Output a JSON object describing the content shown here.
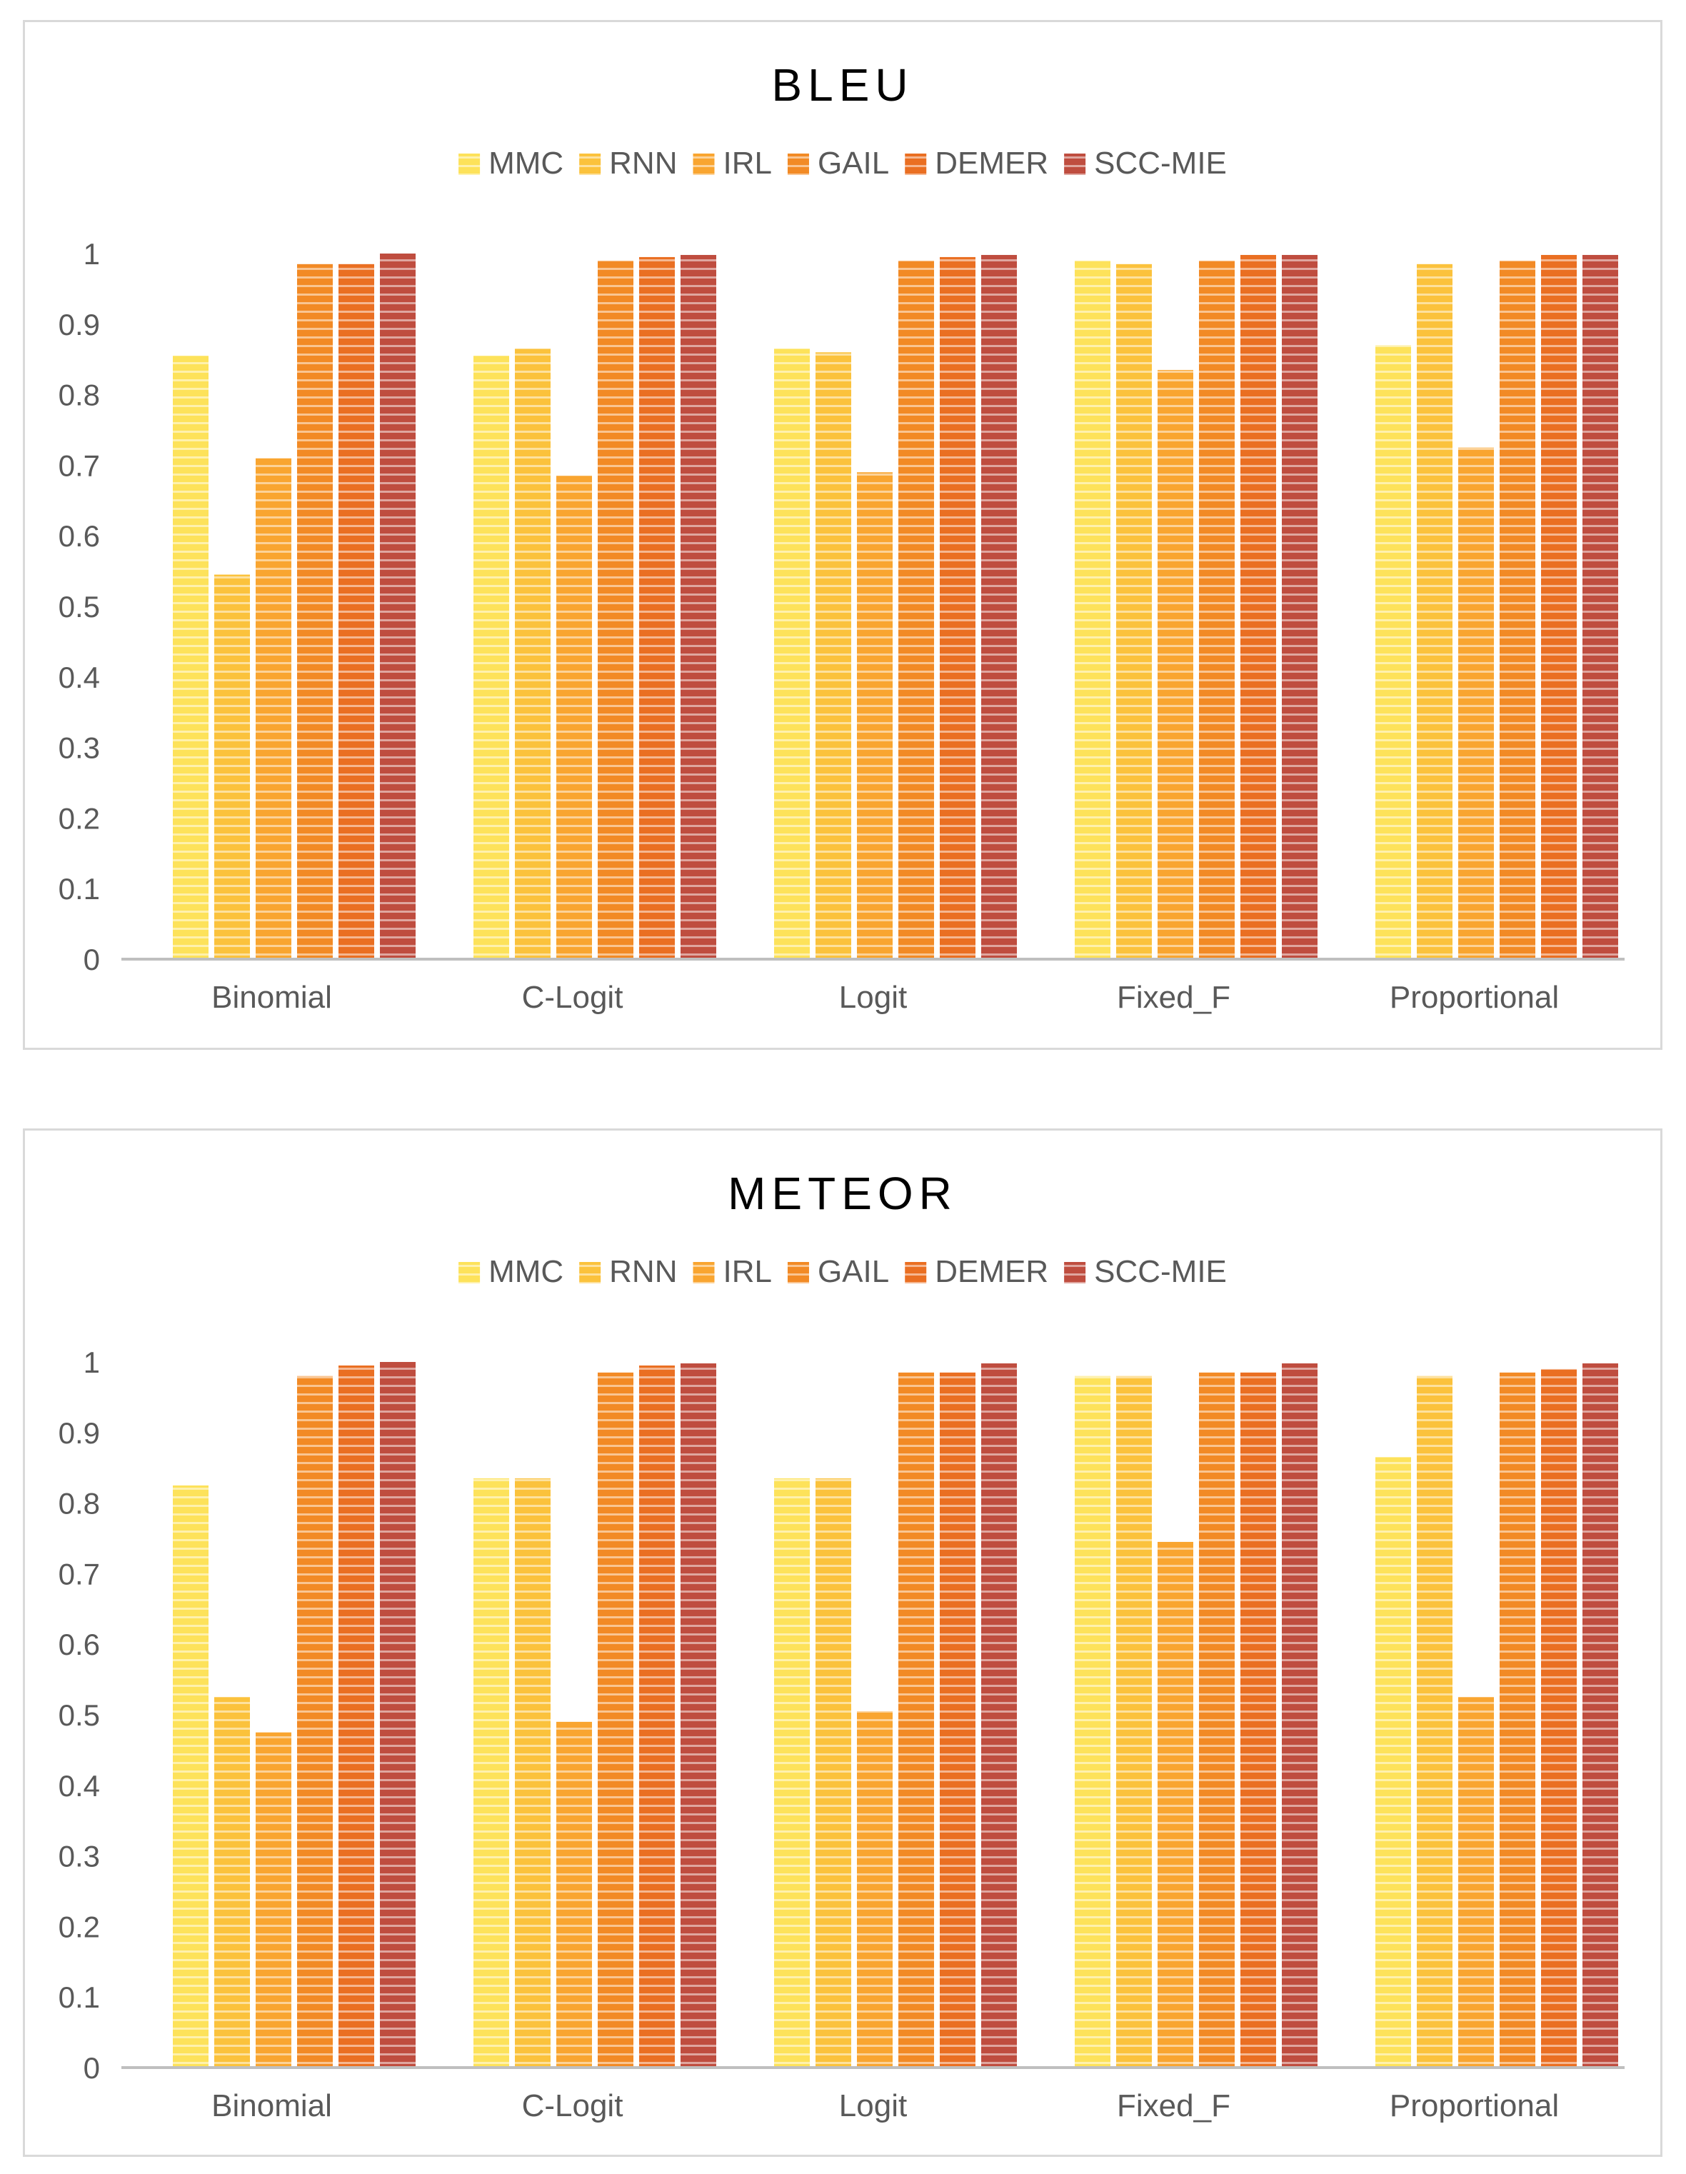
{
  "palette": {
    "MMC": "#fde25a",
    "RNN": "#fbc23c",
    "IRL": "#f9a530",
    "GAIL": "#f28a25",
    "DEMER": "#ea6f22",
    "SCC-MIE": "#bf4d3f",
    "axis": "#bfbfbf",
    "text": "#595959",
    "title": "#000000"
  },
  "chart_data": [
    {
      "type": "bar",
      "title": "BLEU",
      "categories": [
        "Binomial",
        "C-Logit",
        "Logit",
        "Fixed_F",
        "Proportional"
      ],
      "ylim": [
        0,
        1
      ],
      "yticks": [
        "0",
        "0.1",
        "0.2",
        "0.3",
        "0.4",
        "0.5",
        "0.6",
        "0.7",
        "0.8",
        "0.9",
        "1"
      ],
      "legend_position": "top",
      "series": [
        {
          "name": "MMC",
          "values": [
            0.855,
            0.855,
            0.865,
            0.99,
            0.87
          ]
        },
        {
          "name": "RNN",
          "values": [
            0.545,
            0.865,
            0.86,
            0.985,
            0.985
          ]
        },
        {
          "name": "IRL",
          "values": [
            0.71,
            0.685,
            0.69,
            0.835,
            0.725
          ]
        },
        {
          "name": "GAIL",
          "values": [
            0.985,
            0.99,
            0.99,
            0.99,
            0.99
          ]
        },
        {
          "name": "DEMER",
          "values": [
            0.985,
            0.995,
            0.995,
            0.998,
            0.998
          ]
        },
        {
          "name": "SCC-MIE",
          "values": [
            1.0,
            0.998,
            0.998,
            0.998,
            0.998
          ]
        }
      ]
    },
    {
      "type": "bar",
      "title": "METEOR",
      "categories": [
        "Binomial",
        "C-Logit",
        "Logit",
        "Fixed_F",
        "Proportional"
      ],
      "ylim": [
        0,
        1
      ],
      "yticks": [
        "0",
        "0.1",
        "0.2",
        "0.3",
        "0.4",
        "0.5",
        "0.6",
        "0.7",
        "0.8",
        "0.9",
        "1"
      ],
      "legend_position": "top",
      "series": [
        {
          "name": "MMC",
          "values": [
            0.825,
            0.835,
            0.835,
            0.98,
            0.865
          ]
        },
        {
          "name": "RNN",
          "values": [
            0.525,
            0.835,
            0.835,
            0.98,
            0.98
          ]
        },
        {
          "name": "IRL",
          "values": [
            0.475,
            0.49,
            0.505,
            0.745,
            0.525
          ]
        },
        {
          "name": "GAIL",
          "values": [
            0.98,
            0.985,
            0.985,
            0.985,
            0.985
          ]
        },
        {
          "name": "DEMER",
          "values": [
            0.995,
            0.995,
            0.985,
            0.985,
            0.99
          ]
        },
        {
          "name": "SCC-MIE",
          "values": [
            1.0,
            0.998,
            0.998,
            0.998,
            0.998
          ]
        }
      ]
    }
  ]
}
